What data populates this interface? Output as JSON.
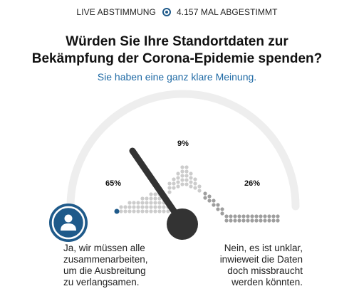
{
  "header": {
    "live_label": "LIVE ABSTIMMUNG",
    "vote_count": "4.157 MAL ABGESTIMMT"
  },
  "question": {
    "line1": "Würden Sie Ihre Standortdaten zur",
    "line2": "Bekämpfung der Corona-Epidemie spenden?"
  },
  "subtitle": "Sie haben eine ganz klare Meinung.",
  "poll": {
    "options": [
      {
        "percent": 65,
        "label": "65%",
        "lines": [
          "Ja, wir müssen alle",
          "zusammenarbeiten,",
          "um die Ausbreitung",
          "zu verlangsamen."
        ]
      },
      {
        "percent": 9,
        "label": "9%"
      },
      {
        "percent": 26,
        "label": "26%",
        "lines": [
          "Nein, es ist unklar,",
          "inwieweit die Daten",
          "doch missbraucht",
          "werden könnten."
        ]
      }
    ]
  },
  "colors": {
    "accent": "#1f5a8a",
    "needle": "#333333",
    "dots_light": "#cccccc",
    "dots_dark": "#9e9e9e",
    "arc": "#eeeeee"
  },
  "icons": {
    "avatar": "user-icon",
    "live": "radio-dot-icon"
  }
}
